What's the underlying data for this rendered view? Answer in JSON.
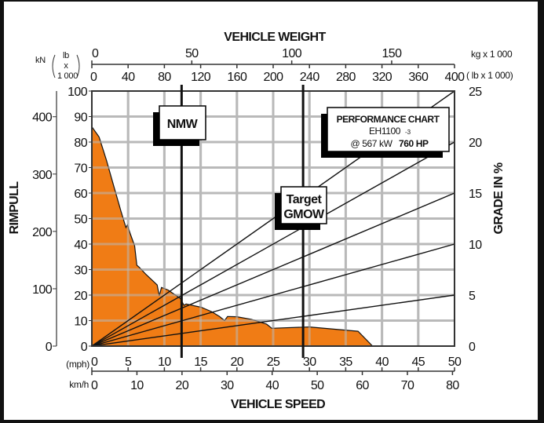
{
  "chart_data": {
    "type": "area",
    "title": "PERFORMANCE CHART",
    "model": "EH1100",
    "model_suffix": "-3",
    "power_kw": "@ 567 kW",
    "power_hp": "760 HP",
    "xlabel": "VEHICLE SPEED",
    "x_unit_mph": "(mph)",
    "x_unit_kmh": "km/h",
    "mph_ticks": [
      0,
      5,
      10,
      15,
      20,
      25,
      30,
      35,
      40,
      45,
      50
    ],
    "kmh_ticks": [
      0,
      10,
      20,
      30,
      40,
      50,
      60,
      70,
      80
    ],
    "xlim_mph": [
      0,
      50
    ],
    "top_label": "VEHICLE WEIGHT",
    "kg_unit": "kg x 1 000",
    "lb_unit": "( lb  x 1 000)",
    "kg_ticks": [
      0,
      50,
      100,
      150
    ],
    "lb_ticks": [
      0,
      40,
      80,
      120,
      160,
      200,
      240,
      280,
      320,
      360,
      400
    ],
    "ylabel": "RIMPULL",
    "y_unit_kn": "kN",
    "y_unit_lb": "lb",
    "y_unit_x": "x",
    "y_unit_1000": "1 000",
    "klb_ticks": [
      0,
      10,
      20,
      30,
      40,
      50,
      60,
      70,
      80,
      90,
      100
    ],
    "kn_ticks": [
      0,
      100,
      200,
      300,
      400
    ],
    "ylim_klb": [
      0,
      100
    ],
    "right_label": "GRADE IN %",
    "grade_ticks": [
      0,
      5,
      10,
      15,
      20,
      25
    ],
    "grade_lines": [
      5,
      10,
      15,
      20,
      25
    ],
    "grid": true,
    "rimpull_curve": {
      "name": "Rimpull (lb x 1000) vs speed (mph)",
      "points": [
        [
          0,
          86
        ],
        [
          1,
          82
        ],
        [
          2,
          73
        ],
        [
          3,
          63
        ],
        [
          4,
          53
        ],
        [
          4.7,
          46.5
        ],
        [
          4.9,
          47.5
        ],
        [
          5.3,
          44
        ],
        [
          5.9,
          39.3
        ],
        [
          6.2,
          31.7
        ],
        [
          6.5,
          31
        ],
        [
          7.5,
          28
        ],
        [
          9,
          24
        ],
        [
          9.3,
          19.7
        ],
        [
          9.6,
          23
        ],
        [
          10.5,
          22
        ],
        [
          12.2,
          18.7
        ],
        [
          12.7,
          16
        ],
        [
          13,
          16.5
        ],
        [
          15.1,
          15.2
        ],
        [
          16.5,
          13.5
        ],
        [
          17.6,
          11.6
        ],
        [
          18.3,
          10
        ],
        [
          18.7,
          11.6
        ],
        [
          20,
          11.5
        ],
        [
          22,
          10.5
        ],
        [
          24.1,
          8.6
        ],
        [
          24.8,
          7
        ],
        [
          30,
          7.5
        ],
        [
          36.7,
          5.8
        ],
        [
          38.7,
          0
        ]
      ]
    },
    "markers": [
      {
        "label": "NMW",
        "weight_klb": 99
      },
      {
        "label_line1": "Target",
        "label_line2": "GMOW",
        "weight_klb": 233
      }
    ],
    "colors": {
      "fill": "#ef780d",
      "grid": "#b9b9b9",
      "line": "#111111"
    }
  }
}
